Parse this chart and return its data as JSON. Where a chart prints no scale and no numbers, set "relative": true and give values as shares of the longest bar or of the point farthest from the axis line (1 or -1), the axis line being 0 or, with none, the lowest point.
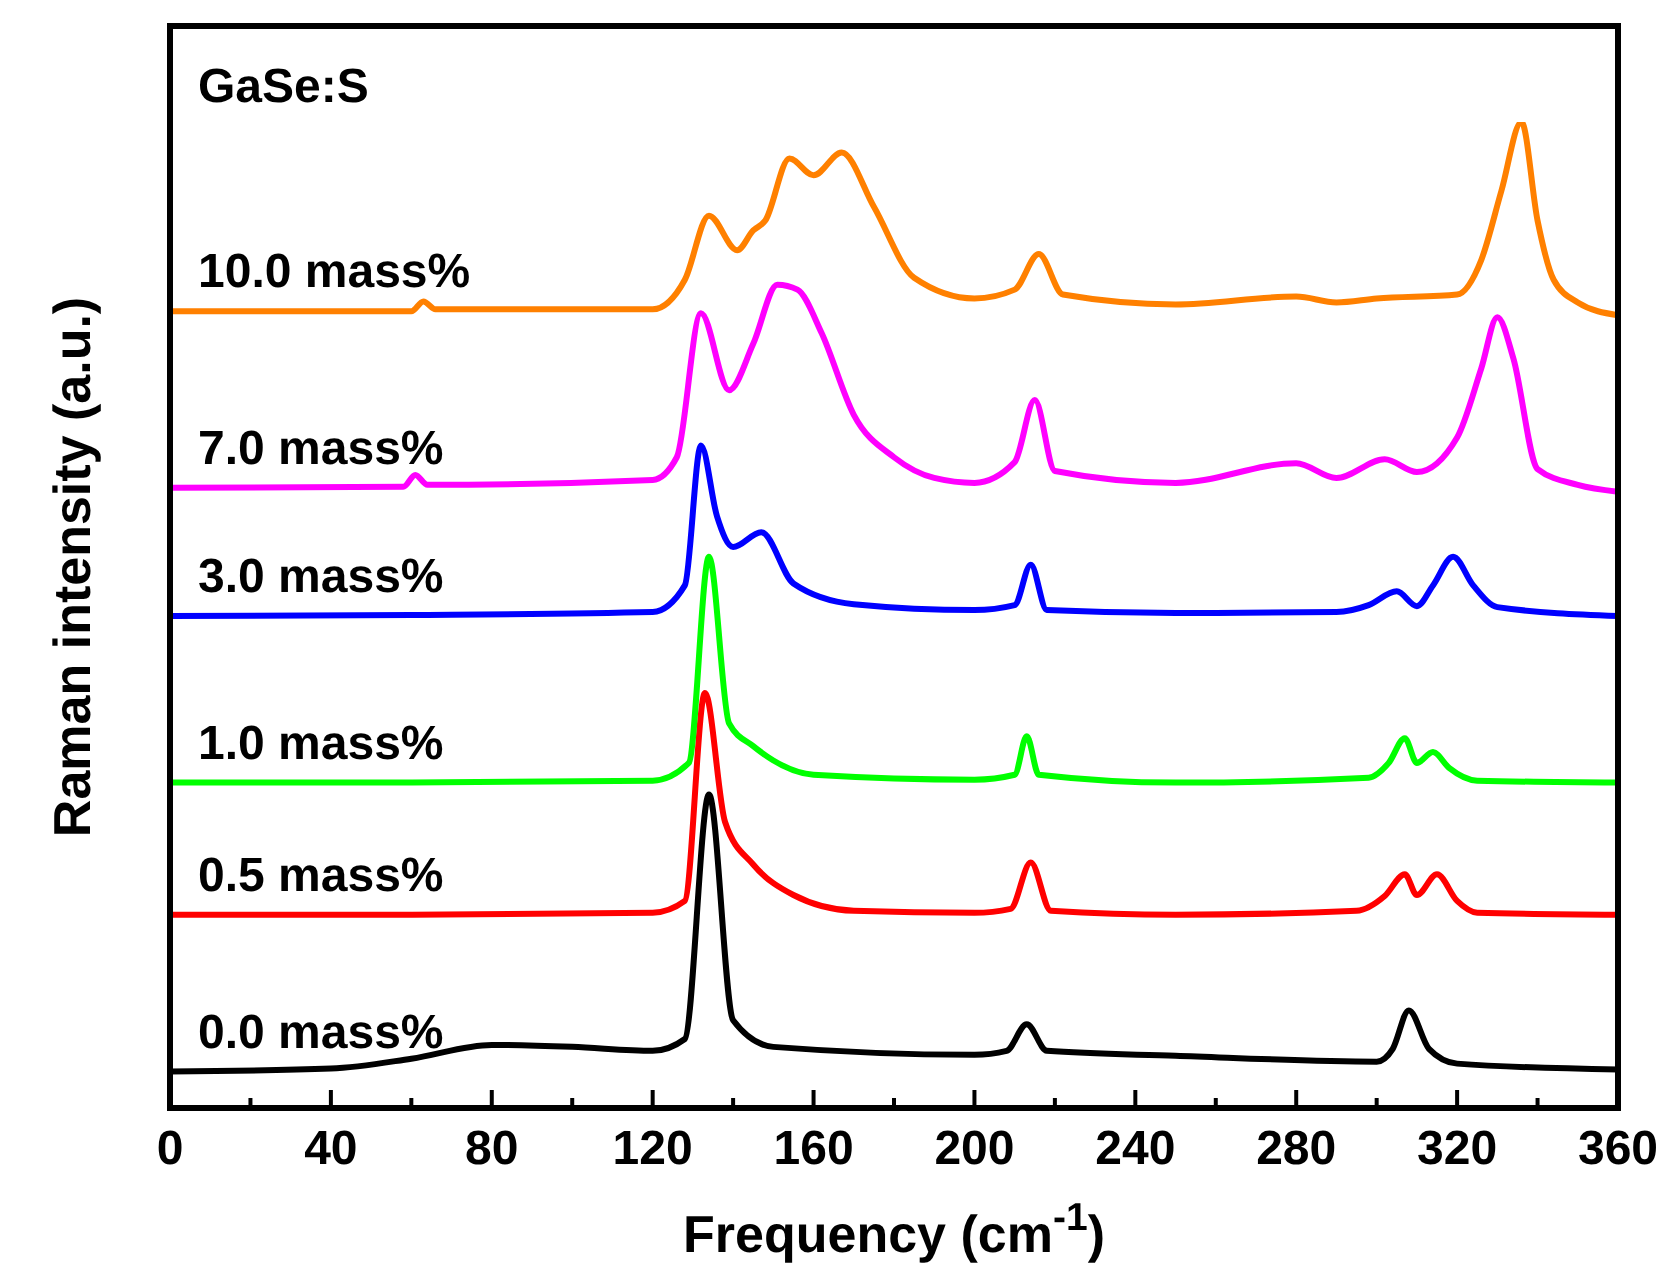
{
  "chart_data": {
    "type": "line",
    "relative": true,
    "xlabel": "Frequency (cm$^{-1}$)",
    "ylabel": "Raman intensity (a.u.)",
    "annotations": [
      "GaSe:S"
    ],
    "xlim": [
      0,
      360
    ],
    "xticks": [
      0,
      {
        "value": 20,
        "label": null
      },
      40,
      {
        "value": 60,
        "label": null
      },
      80,
      {
        "value": 100,
        "label": null
      },
      120,
      {
        "value": 140,
        "label": null
      },
      160,
      {
        "value": 180,
        "label": null
      },
      200,
      {
        "value": 220,
        "label": null
      },
      240,
      {
        "value": 260,
        "label": null
      },
      280,
      {
        "value": 300,
        "label": null
      },
      320,
      {
        "value": 340,
        "label": null
      },
      360
    ],
    "marker": "none",
    "line_style": "solid",
    "series": [
      {
        "name": "0.0 mass%",
        "color": "#000000",
        "x": [
          0,
          40,
          60,
          80,
          100,
          120,
          128,
          134,
          140,
          150,
          200,
          208,
          213,
          218,
          250,
          300,
          304,
          308,
          313,
          320,
          360
        ],
        "values": [
          0.037,
          0.04,
          0.05,
          0.064,
          0.062,
          0.058,
          0.07,
          0.318,
          0.089,
          0.062,
          0.054,
          0.058,
          0.085,
          0.058,
          0.053,
          0.047,
          0.06,
          0.099,
          0.06,
          0.045,
          0.039
        ]
      },
      {
        "name": "0.5 mass%",
        "color": "#ff0000",
        "x": [
          0,
          60,
          120,
          128,
          133,
          138,
          145,
          155,
          170,
          200,
          209,
          214,
          219,
          250,
          295,
          302,
          307,
          310,
          315,
          320,
          325,
          360
        ],
        "values": [
          0.196,
          0.196,
          0.198,
          0.21,
          0.421,
          0.29,
          0.247,
          0.216,
          0.2,
          0.198,
          0.202,
          0.249,
          0.2,
          0.196,
          0.2,
          0.215,
          0.237,
          0.216,
          0.237,
          0.21,
          0.198,
          0.196
        ]
      },
      {
        "name": "1.0 mass%",
        "color": "#00ff00",
        "x": [
          0,
          60,
          120,
          129,
          134,
          139,
          145,
          160,
          200,
          210,
          213,
          216,
          250,
          298,
          303,
          307,
          310,
          314,
          318,
          325,
          360
        ],
        "values": [
          0.33,
          0.33,
          0.332,
          0.35,
          0.559,
          0.39,
          0.367,
          0.338,
          0.333,
          0.338,
          0.377,
          0.338,
          0.33,
          0.335,
          0.35,
          0.375,
          0.35,
          0.361,
          0.345,
          0.332,
          0.33
        ]
      },
      {
        "name": "3.0 mass%",
        "color": "#0000ff",
        "x": [
          0,
          60,
          120,
          128,
          132,
          136,
          140,
          147,
          155,
          170,
          200,
          210,
          214,
          218,
          250,
          290,
          298,
          305,
          310,
          314,
          319,
          324,
          330,
          360
        ],
        "values": [
          0.499,
          0.5,
          0.503,
          0.53,
          0.672,
          0.6,
          0.569,
          0.584,
          0.532,
          0.511,
          0.505,
          0.51,
          0.551,
          0.505,
          0.502,
          0.503,
          0.51,
          0.524,
          0.509,
          0.53,
          0.559,
          0.53,
          0.508,
          0.499
        ]
      },
      {
        "name": "7.0 mass%",
        "color": "#ff00ff",
        "x": [
          0,
          58,
          61,
          64,
          120,
          126,
          132,
          139,
          145,
          151,
          156,
          162,
          170,
          180,
          190,
          200,
          210,
          215,
          220,
          250,
          280,
          290,
          302,
          310,
          320,
          326,
          330,
          334,
          340,
          350,
          360
        ],
        "values": [
          0.629,
          0.63,
          0.642,
          0.632,
          0.637,
          0.66,
          0.806,
          0.728,
          0.775,
          0.835,
          0.83,
          0.786,
          0.703,
          0.66,
          0.639,
          0.634,
          0.655,
          0.718,
          0.646,
          0.634,
          0.654,
          0.639,
          0.658,
          0.645,
          0.68,
          0.75,
          0.802,
          0.76,
          0.648,
          0.632,
          0.625
        ]
      },
      {
        "name": "10.0 mass%",
        "color": "#ff8000",
        "x": [
          0,
          60,
          63,
          66,
          120,
          128,
          134,
          141,
          145,
          148,
          154,
          160,
          167,
          175,
          185,
          200,
          210,
          216,
          222,
          250,
          280,
          290,
          300,
          320,
          326,
          331,
          336,
          340,
          344,
          350,
          360
        ],
        "values": [
          0.808,
          0.808,
          0.818,
          0.81,
          0.81,
          0.84,
          0.905,
          0.87,
          0.89,
          0.9,
          0.963,
          0.946,
          0.969,
          0.914,
          0.842,
          0.821,
          0.83,
          0.866,
          0.825,
          0.815,
          0.823,
          0.817,
          0.821,
          0.825,
          0.86,
          0.93,
          1.0,
          0.9,
          0.84,
          0.817,
          0.804
        ]
      }
    ]
  }
}
